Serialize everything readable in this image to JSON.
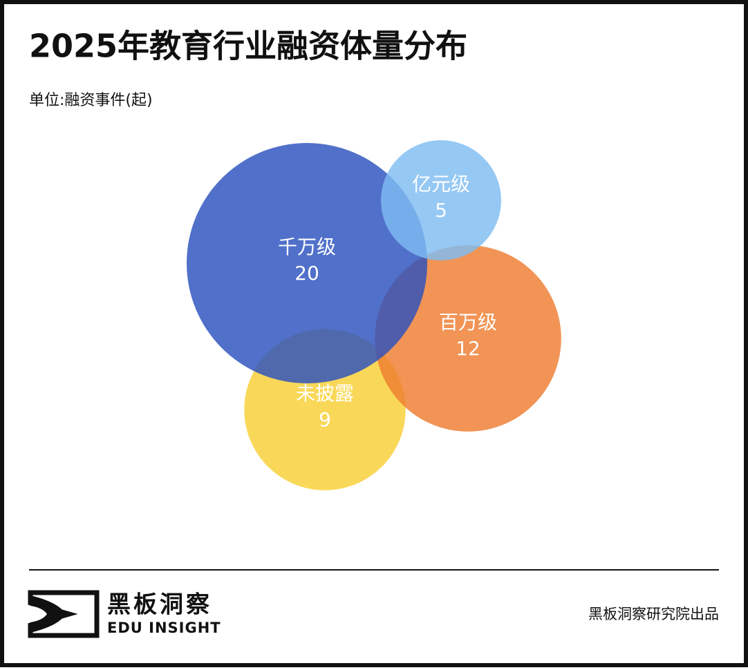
{
  "chart_data": {
    "type": "bubble",
    "title": "2025年教育行业融资体量分布",
    "subtitle": "单位:融资事件(起)",
    "categories": [
      "未披露",
      "百万级",
      "千万级",
      "亿元级"
    ],
    "values": [
      9,
      12,
      20,
      5
    ],
    "colors": [
      "#f8cf35",
      "#ee7d30",
      "#2b50be",
      "#7fbcf2"
    ]
  },
  "brand": {
    "name": "黑板洞察",
    "tagline": "EDU INSIGHT"
  },
  "footer": "黑板洞察研究院出品"
}
